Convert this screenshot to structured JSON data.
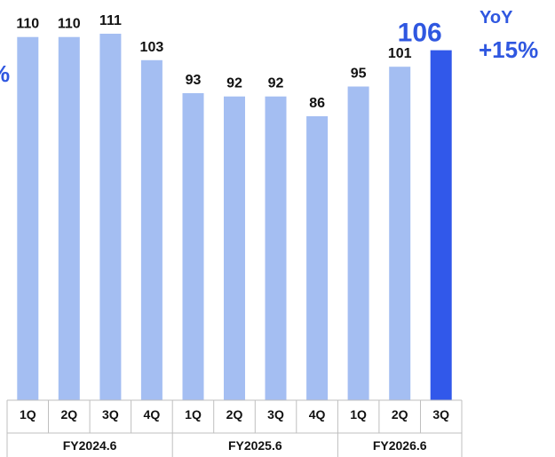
{
  "chart_data": {
    "type": "bar",
    "categories": [
      "1Q",
      "2Q",
      "3Q",
      "4Q",
      "1Q",
      "2Q",
      "3Q",
      "4Q",
      "1Q",
      "2Q",
      "3Q"
    ],
    "groups": [
      {
        "label": "FY2024.6",
        "count": 4
      },
      {
        "label": "FY2025.6",
        "count": 4
      },
      {
        "label": "FY2026.6",
        "count": 3
      }
    ],
    "values": [
      110,
      110,
      111,
      103,
      93,
      92,
      92,
      86,
      95,
      101,
      106
    ],
    "highlight_index": 10,
    "ylim": [
      0,
      120
    ],
    "grid": false,
    "title": "",
    "xlabel": "",
    "ylabel": "",
    "annotation": {
      "line1": "YoY",
      "line2": "+15%"
    },
    "left_edge_fragment": "%"
  },
  "colors": {
    "bar": "#a4bef2",
    "highlight_bar": "#3158ea",
    "highlight_text": "#2f57e0",
    "axis": "#bfbfbf",
    "text": "#111111"
  }
}
